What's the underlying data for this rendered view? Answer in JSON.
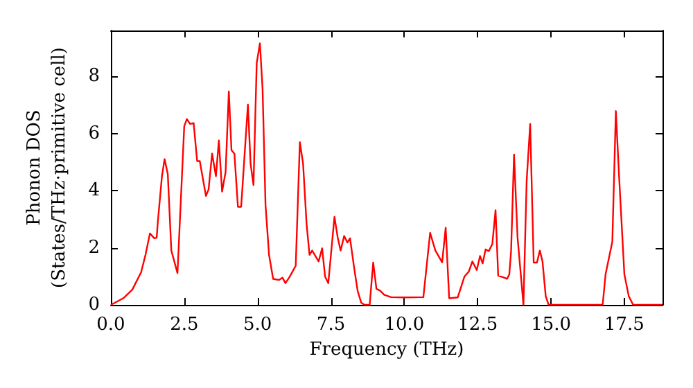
{
  "chart_data": {
    "type": "line",
    "xlabel": "Frequency (THz)",
    "ylabel": "Phonon DOS\n(States/THz·primitive cell)",
    "xlim": [
      0,
      18.8
    ],
    "ylim": [
      0,
      9.6
    ],
    "xticks": [
      {
        "value": 0,
        "label": "0.0"
      },
      {
        "value": 2.5,
        "label": "2.5"
      },
      {
        "value": 5,
        "label": "5.0"
      },
      {
        "value": 7.5,
        "label": "7.5"
      },
      {
        "value": 10,
        "label": "10.0"
      },
      {
        "value": 12.5,
        "label": "12.5"
      },
      {
        "value": 15,
        "label": "15.0"
      },
      {
        "value": 17.5,
        "label": "17.5"
      }
    ],
    "yticks": [
      0,
      2,
      4,
      6,
      8
    ],
    "grid": false,
    "marker": "none",
    "line_style": "solid",
    "series": [
      {
        "color": "#ff0000",
        "x": [
          0,
          0.42,
          0.73,
          1.03,
          1.18,
          1.33,
          1.48,
          1.56,
          1.6,
          1.74,
          1.83,
          1.94,
          2.06,
          2.27,
          2.5,
          2.59,
          2.7,
          2.82,
          2.94,
          3.03,
          3.24,
          3.33,
          3.45,
          3.58,
          3.68,
          3.79,
          3.91,
          4.02,
          4.11,
          4.21,
          4.33,
          4.44,
          4.67,
          4.76,
          4.86,
          4.97,
          5.08,
          5.17,
          5.27,
          5.39,
          5.53,
          5.73,
          5.85,
          5.95,
          6.08,
          6.14,
          6.3,
          6.44,
          6.55,
          6.67,
          6.77,
          6.86,
          7.08,
          7.2,
          7.3,
          7.41,
          7.62,
          7.73,
          7.83,
          7.95,
          8.06,
          8.15,
          8.29,
          8.41,
          8.53,
          8.64,
          8.82,
          8.94,
          9.05,
          9.17,
          9.32,
          9.55,
          10,
          10.65,
          10.88,
          11.06,
          11.29,
          11.41,
          11.53,
          11.82,
          12.05,
          12.2,
          12.32,
          12.47,
          12.58,
          12.67,
          12.77,
          12.88,
          13,
          13.11,
          13.2,
          13.38,
          13.5,
          13.58,
          13.64,
          13.74,
          13.86,
          14.06,
          14.17,
          14.29,
          14.41,
          14.52,
          14.62,
          14.71,
          14.82,
          14.92,
          16.76,
          16.86,
          17.09,
          17.21,
          17.32,
          17.5,
          17.65,
          17.8,
          18.8
        ],
        "values": [
          0,
          0.23,
          0.53,
          1.14,
          1.75,
          2.5,
          2.33,
          2.35,
          2.9,
          4.5,
          5.1,
          4.57,
          1.9,
          1.11,
          6.25,
          6.5,
          6.33,
          6.36,
          5.03,
          5.03,
          3.81,
          4.04,
          5.29,
          4.5,
          5.75,
          3.96,
          4.65,
          7.47,
          5.41,
          5.29,
          3.43,
          3.43,
          7.01,
          4.95,
          4.19,
          8.46,
          9.15,
          7.55,
          3.5,
          1.75,
          0.91,
          0.87,
          0.95,
          0.76,
          0.96,
          1.07,
          1.37,
          5.69,
          4.95,
          2.82,
          1.75,
          1.9,
          1.52,
          1.98,
          0.99,
          0.76,
          3.08,
          2.36,
          1.9,
          2.41,
          2.18,
          2.33,
          1.3,
          0.49,
          0.08,
          0,
          0,
          1.48,
          0.56,
          0.5,
          0.35,
          0.27,
          0.26,
          0.27,
          2.52,
          1.9,
          1.49,
          2.7,
          0.23,
          0.26,
          0.99,
          1.17,
          1.52,
          1.22,
          1.71,
          1.45,
          1.94,
          1.88,
          2.13,
          3.31,
          1.02,
          0.96,
          0.91,
          1.07,
          1.9,
          5.26,
          2.36,
          0,
          4.34,
          6.33,
          1.48,
          1.48,
          1.9,
          1.52,
          0.3,
          0,
          0,
          1.07,
          2.21,
          6.78,
          4.5,
          1.07,
          0.3,
          0,
          0
        ]
      }
    ]
  }
}
